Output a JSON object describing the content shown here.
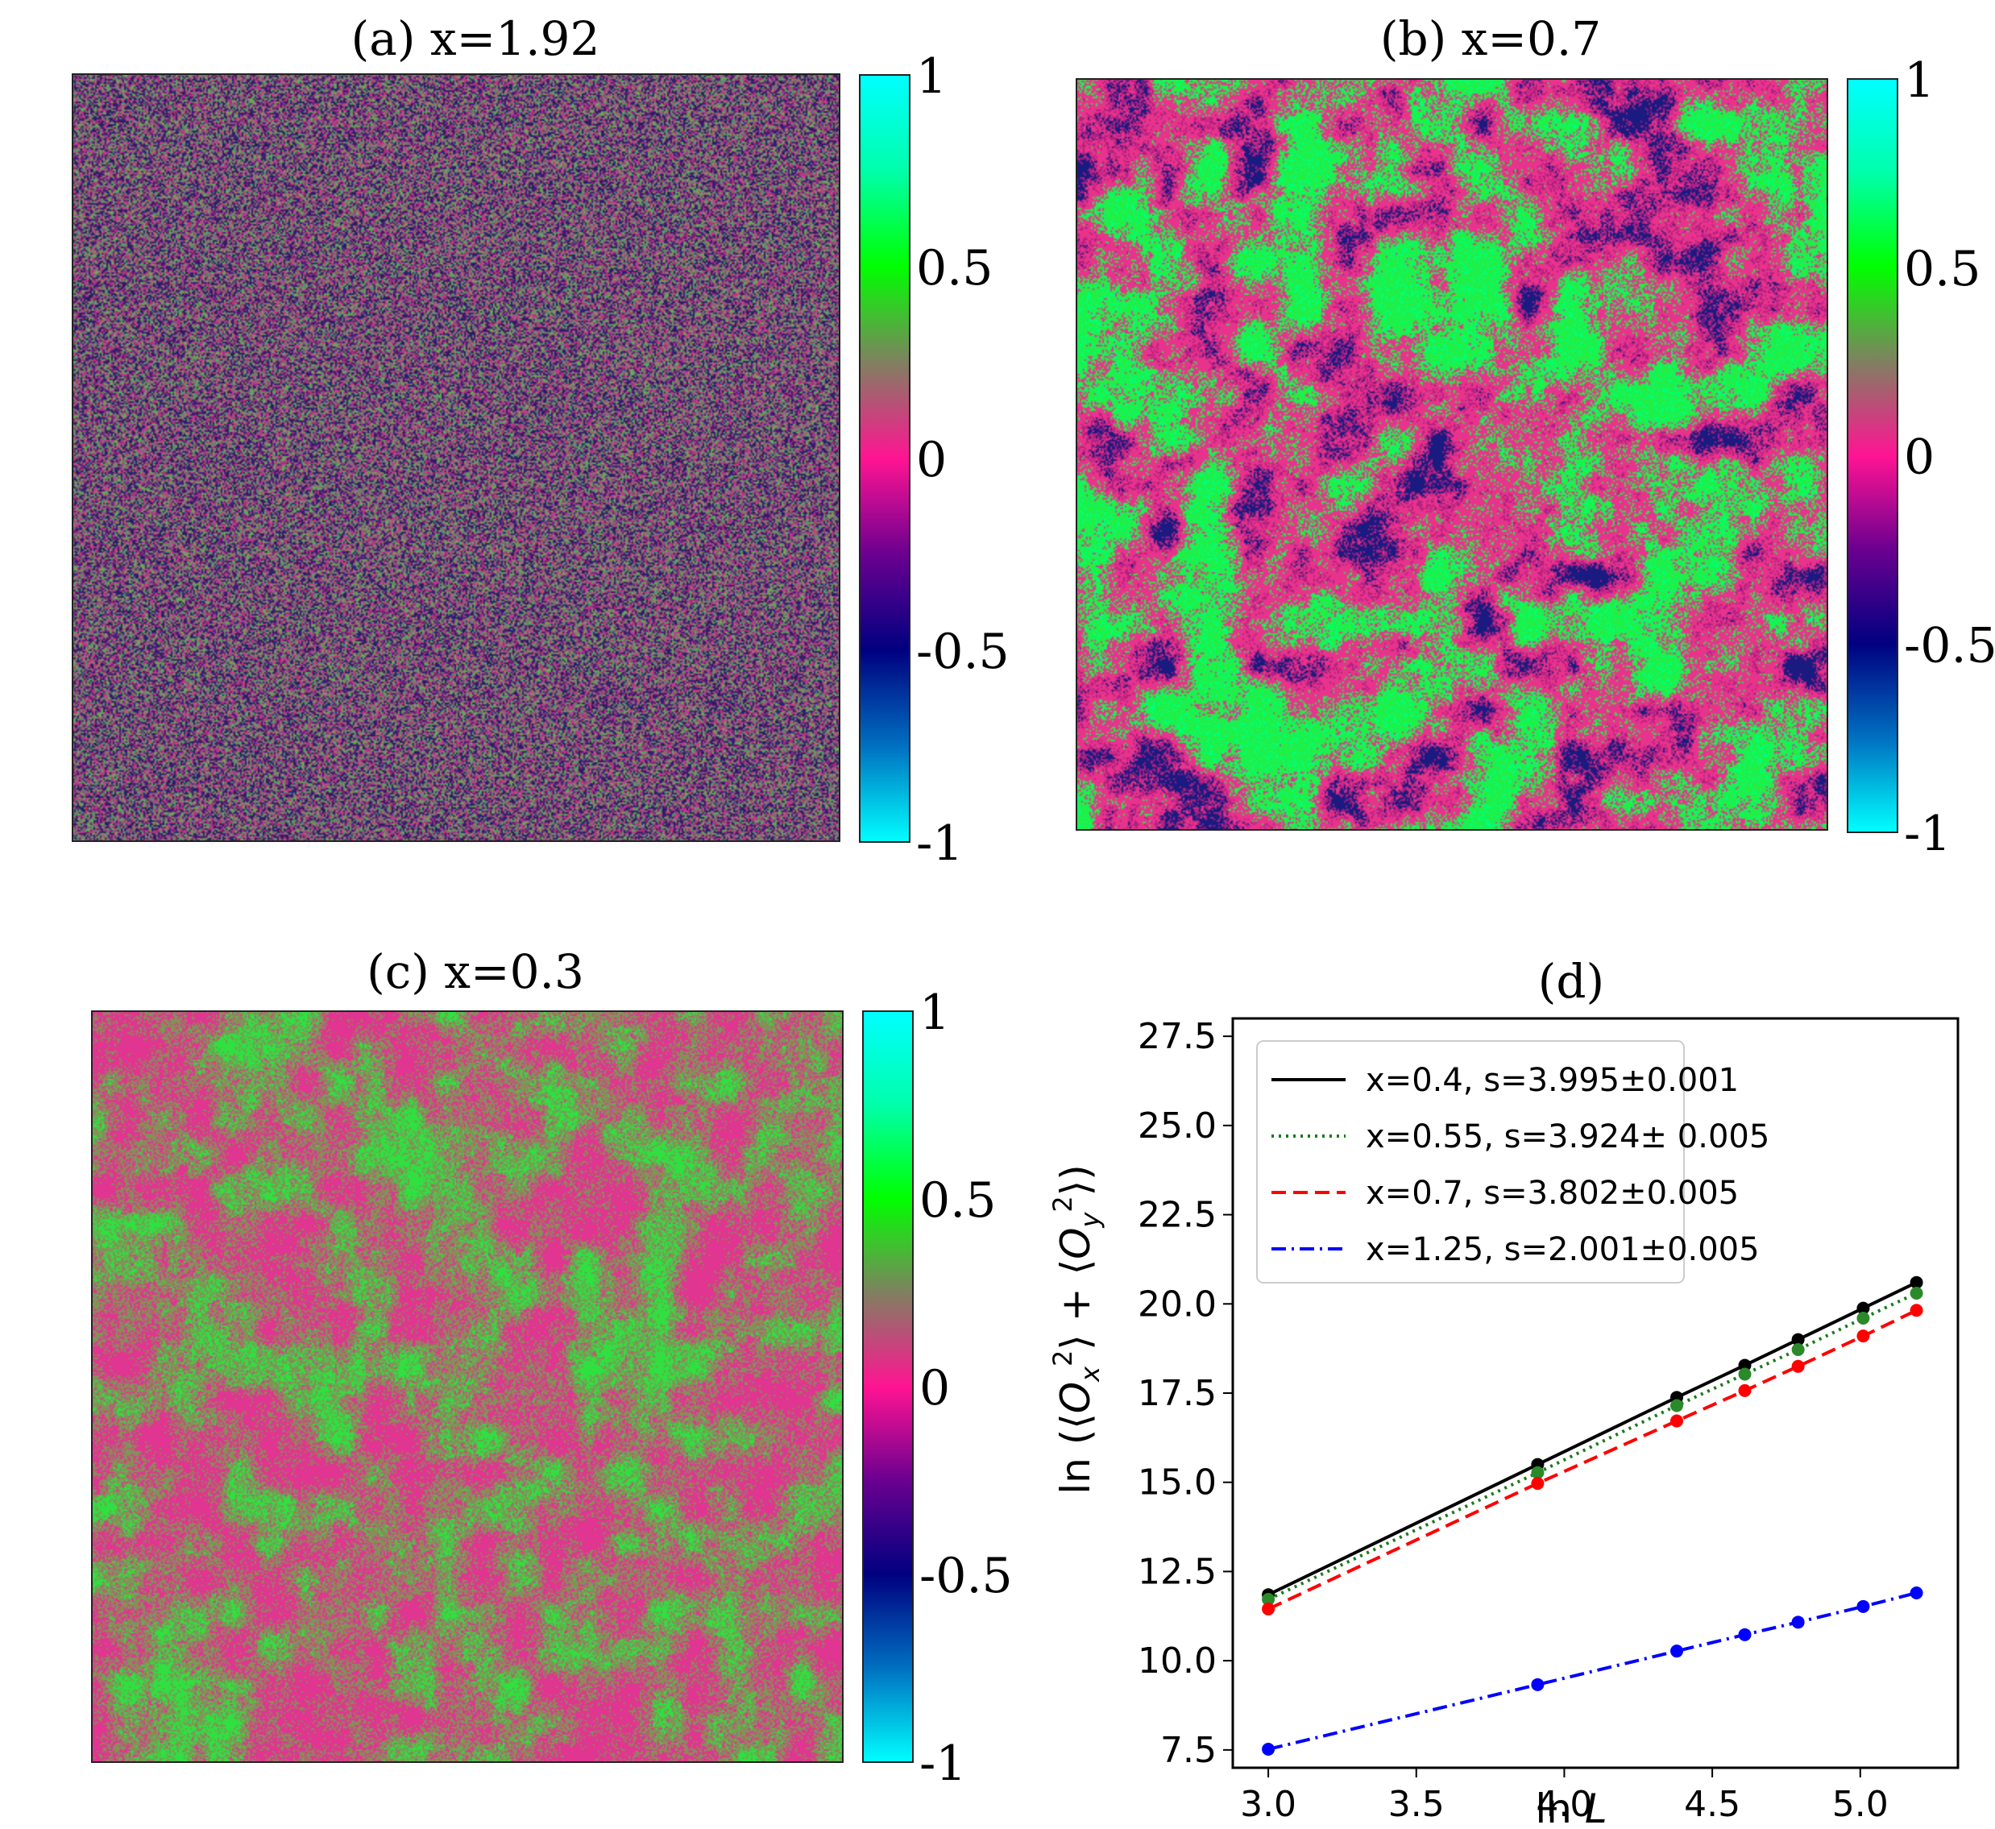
{
  "colorbar": {
    "ticks": [
      {
        "value": 1,
        "label": "1"
      },
      {
        "value": 0.5,
        "label": "0.5"
      },
      {
        "value": 0,
        "label": "0"
      },
      {
        "value": -0.5,
        "label": "-0.5"
      },
      {
        "value": -1,
        "label": "-1"
      }
    ],
    "colormap": [
      "#00ffff",
      "#0070c0",
      "#000080",
      "#6a0090",
      "#ff1493",
      "#808060",
      "#00ff00",
      "#00ffaa",
      "#00ffff"
    ]
  },
  "panels": [
    {
      "id": "a",
      "title": "(a)  x=1.92",
      "palette": [
        "#c2408a",
        "#3a1f78",
        "#6fa55a",
        "#a2307a",
        "#5a8a6a",
        "#2a1a60"
      ]
    },
    {
      "id": "b",
      "title": "(b)  x=0.7",
      "palette": [
        "#22ee44",
        "#00ff77",
        "#e8338c",
        "#b02080",
        "#1a1a80"
      ]
    },
    {
      "id": "c",
      "title": "(c)   x=0.3",
      "palette": [
        "#7a9a5a",
        "#8a8c58",
        "#e03590",
        "#30e040"
      ]
    }
  ],
  "chart_data": {
    "type": "line",
    "title": "(d)",
    "xlabel": "ln L",
    "ylabel": "ln (⟨O_x^2⟩ + ⟨O_y^2⟩)",
    "xlim": [
      2.88,
      5.33
    ],
    "ylim": [
      7.0,
      28.0
    ],
    "xticks": [
      3.0,
      3.5,
      4.0,
      4.5,
      5.0
    ],
    "xtick_labels": [
      "3.0",
      "3.5",
      "4.0",
      "4.5",
      "5.0"
    ],
    "yticks": [
      7.5,
      10.0,
      12.5,
      15.0,
      17.5,
      20.0,
      22.5,
      25.0,
      27.5
    ],
    "ytick_labels": [
      "7.5",
      "10.0",
      "12.5",
      "15.0",
      "17.5",
      "20.0",
      "22.5",
      "25.0",
      "27.5"
    ],
    "legend_position": "top-left",
    "x": [
      3.0,
      3.91,
      4.38,
      4.61,
      4.79,
      5.01,
      5.19
    ],
    "series": [
      {
        "name": "x=0.4, s=3.995±0.001",
        "color": "#000000",
        "dash": "solid",
        "values": [
          11.85,
          15.5,
          17.38,
          18.28,
          19.0,
          19.88,
          20.6
        ]
      },
      {
        "name": "x=0.55, s=3.924± 0.005",
        "color": "#1a7a1a",
        "dash": "dotted",
        "values": [
          11.72,
          15.27,
          17.15,
          18.03,
          18.72,
          19.6,
          20.3
        ]
      },
      {
        "name": "x=0.7, s=3.802±0.005",
        "color": "#ff0000",
        "dash": "dashed",
        "values": [
          11.45,
          14.97,
          16.72,
          17.57,
          18.25,
          19.1,
          19.82
        ]
      },
      {
        "name": "x=1.25, s=2.001±0.005",
        "color": "#0000ff",
        "dash": "dashdot",
        "values": [
          7.52,
          9.33,
          10.27,
          10.73,
          11.08,
          11.52,
          11.9
        ]
      }
    ]
  }
}
